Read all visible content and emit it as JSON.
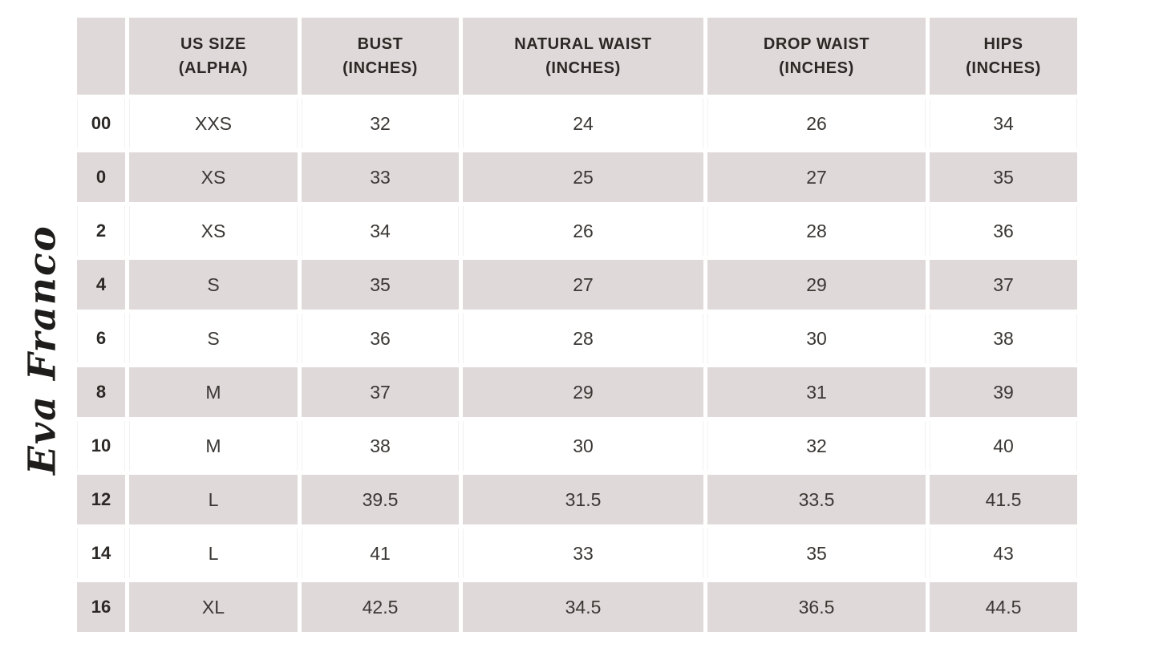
{
  "logo": {
    "text": "Eva Franco"
  },
  "colors": {
    "page_bg": "#ffffff",
    "header_bg": "#dfdad9",
    "row_bg": "#ffffff",
    "row_alt_bg": "#dfdad9",
    "text": "#3a3734",
    "text_dark": "#2b2825",
    "ink": "#1f1d1b"
  },
  "table": {
    "columns": [
      {
        "key": "size",
        "line1": "",
        "line2": ""
      },
      {
        "key": "alpha",
        "line1": "US SIZE",
        "line2": "(ALPHA)"
      },
      {
        "key": "bust",
        "line1": "BUST",
        "line2": "(INCHES)"
      },
      {
        "key": "natural_waist",
        "line1": "NATURAL WAIST",
        "line2": "(INCHES)"
      },
      {
        "key": "drop_waist",
        "line1": "DROP WAIST",
        "line2": "(INCHES)"
      },
      {
        "key": "hips",
        "line1": "HIPS",
        "line2": "(INCHES)"
      }
    ],
    "rows": [
      {
        "size": "00",
        "alpha": "XXS",
        "bust": "32",
        "natural_waist": "24",
        "drop_waist": "26",
        "hips": "34"
      },
      {
        "size": "0",
        "alpha": "XS",
        "bust": "33",
        "natural_waist": "25",
        "drop_waist": "27",
        "hips": "35"
      },
      {
        "size": "2",
        "alpha": "XS",
        "bust": "34",
        "natural_waist": "26",
        "drop_waist": "28",
        "hips": "36"
      },
      {
        "size": "4",
        "alpha": "S",
        "bust": "35",
        "natural_waist": "27",
        "drop_waist": "29",
        "hips": "37"
      },
      {
        "size": "6",
        "alpha": "S",
        "bust": "36",
        "natural_waist": "28",
        "drop_waist": "30",
        "hips": "38"
      },
      {
        "size": "8",
        "alpha": "M",
        "bust": "37",
        "natural_waist": "29",
        "drop_waist": "31",
        "hips": "39"
      },
      {
        "size": "10",
        "alpha": "M",
        "bust": "38",
        "natural_waist": "30",
        "drop_waist": "32",
        "hips": "40"
      },
      {
        "size": "12",
        "alpha": "L",
        "bust": "39.5",
        "natural_waist": "31.5",
        "drop_waist": "33.5",
        "hips": "41.5"
      },
      {
        "size": "14",
        "alpha": "L",
        "bust": "41",
        "natural_waist": "33",
        "drop_waist": "35",
        "hips": "43"
      },
      {
        "size": "16",
        "alpha": "XL",
        "bust": "42.5",
        "natural_waist": "34.5",
        "drop_waist": "36.5",
        "hips": "44.5"
      }
    ]
  },
  "chart_data": {
    "type": "table",
    "columns": [
      "",
      "US SIZE (ALPHA)",
      "BUST (INCHES)",
      "NATURAL WAIST (INCHES)",
      "DROP WAIST (INCHES)",
      "HIPS (INCHES)"
    ],
    "rows": [
      [
        "00",
        "XXS",
        32,
        24,
        26,
        34
      ],
      [
        "0",
        "XS",
        33,
        25,
        27,
        35
      ],
      [
        "2",
        "XS",
        34,
        26,
        28,
        36
      ],
      [
        "4",
        "S",
        35,
        27,
        29,
        37
      ],
      [
        "6",
        "S",
        36,
        28,
        30,
        38
      ],
      [
        "8",
        "M",
        37,
        29,
        31,
        39
      ],
      [
        "10",
        "M",
        38,
        30,
        32,
        40
      ],
      [
        "12",
        "L",
        39.5,
        31.5,
        33.5,
        41.5
      ],
      [
        "14",
        "L",
        41,
        33,
        35,
        43
      ],
      [
        "16",
        "XL",
        42.5,
        34.5,
        36.5,
        44.5
      ]
    ]
  }
}
